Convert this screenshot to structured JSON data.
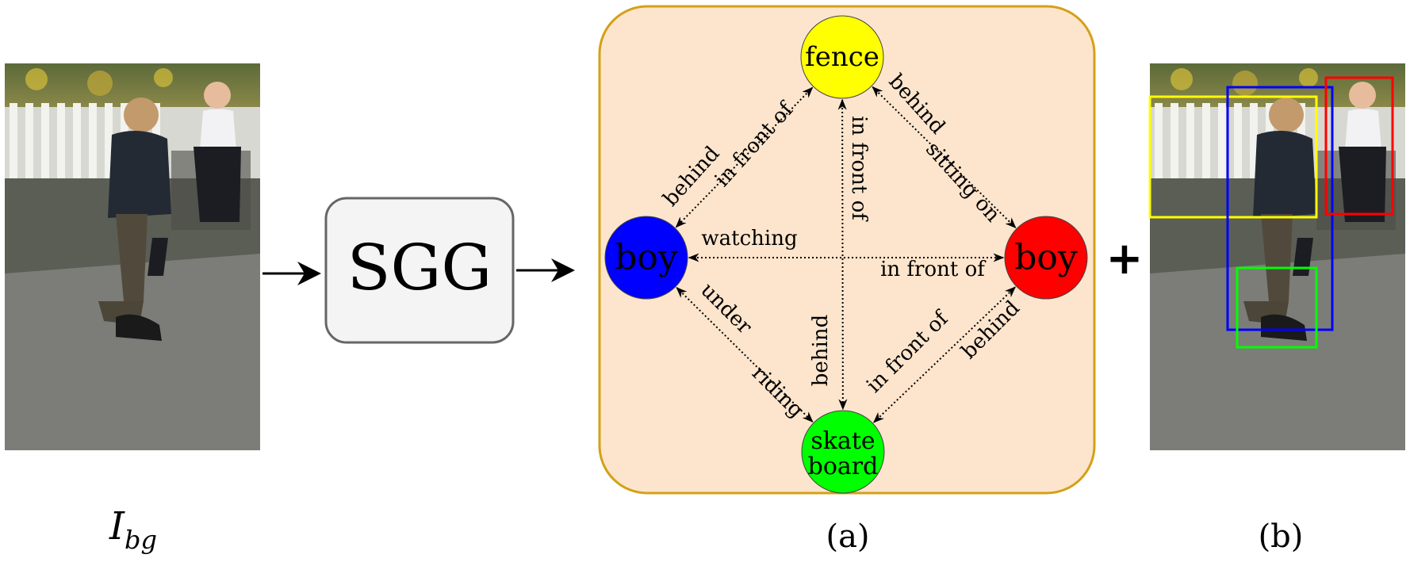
{
  "input_image": {
    "caption_main": "I",
    "caption_sub": "bg"
  },
  "sgg_block": {
    "label": "SGG"
  },
  "scene_graph": {
    "panel_caption": "(a)",
    "panel_fill": "#fde5cd",
    "panel_border": "#d4a017",
    "nodes": [
      {
        "id": "fence",
        "lines": [
          "fence"
        ],
        "color": "#ffff00"
      },
      {
        "id": "boy_left",
        "lines": [
          "boy"
        ],
        "color": "#0000ff"
      },
      {
        "id": "boy_right",
        "lines": [
          "boy"
        ],
        "color": "#ff0000"
      },
      {
        "id": "skateboard",
        "lines": [
          "skate",
          "board"
        ],
        "color": "#00ff00"
      }
    ],
    "edge_labels": {
      "boy_left_fence": "behind",
      "fence_boy_left": "in front of",
      "fence_skateboard": "in front of",
      "skateboard_fence": "behind",
      "fence_boy_right": "behind",
      "boy_right_fence": "sitting on",
      "boy_right_boy_left": "watching",
      "boy_left_boy_right": "in front of",
      "boy_left_skateboard": "under",
      "skateboard_boy_left": "riding",
      "skateboard_boy_right": "in front of",
      "boy_right_skateboard": "behind"
    }
  },
  "plus_sign": "+",
  "boxes_image": {
    "caption": "(b)",
    "box_colors": {
      "fence": "#ffff00",
      "boy_left": "#0000ff",
      "boy_right": "#ff0000",
      "skateboard": "#00ff00"
    }
  }
}
